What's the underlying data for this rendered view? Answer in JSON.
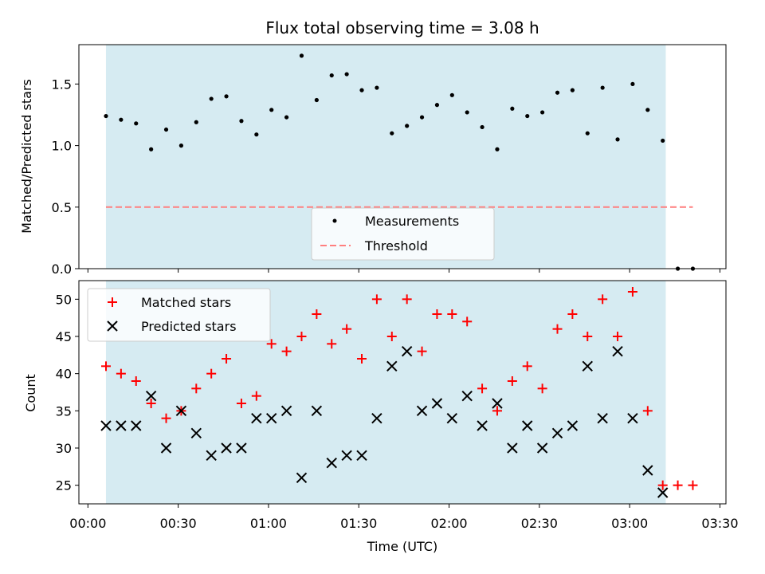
{
  "chart_data": [
    {
      "type": "scatter",
      "title": "Flux total observing time = 3.08 h",
      "xlabel": "",
      "ylabel": "Matched/Predicted stars",
      "ylim": [
        0,
        1.82
      ],
      "yticks": [
        "0.0",
        "0.5",
        "1.0",
        "1.5"
      ],
      "shaded_span": [
        "00:06",
        "03:12"
      ],
      "shade_color": "#add8e6",
      "grid": false,
      "legend_position": "lower-center",
      "x_time": [
        "00:06",
        "00:11",
        "00:16",
        "00:21",
        "00:26",
        "00:31",
        "00:36",
        "00:41",
        "00:46",
        "00:51",
        "00:56",
        "01:01",
        "01:06",
        "01:11",
        "01:16",
        "01:21",
        "01:26",
        "01:31",
        "01:36",
        "01:41",
        "01:46",
        "01:51",
        "01:56",
        "02:01",
        "02:06",
        "02:11",
        "02:16",
        "02:21",
        "02:26",
        "02:31",
        "02:36",
        "02:41",
        "02:46",
        "02:51",
        "02:56",
        "03:01",
        "03:06",
        "03:11",
        "03:16",
        "03:21"
      ],
      "series": [
        {
          "name": "Measurements",
          "marker": "dot",
          "color": "#000000",
          "values": [
            1.24,
            1.21,
            1.18,
            0.97,
            1.13,
            1.0,
            1.19,
            1.38,
            1.4,
            1.2,
            1.09,
            1.29,
            1.23,
            1.73,
            1.37,
            1.57,
            1.58,
            1.45,
            1.47,
            1.1,
            1.16,
            1.23,
            1.33,
            1.41,
            1.27,
            1.15,
            0.97,
            1.3,
            1.24,
            1.27,
            1.43,
            1.45,
            1.1,
            1.47,
            1.05,
            1.5,
            1.29,
            1.04,
            0.0,
            0.0
          ]
        }
      ],
      "threshold": {
        "name": "Threshold",
        "value": 0.5,
        "color": "#ff7f7f",
        "x_range": [
          "00:06",
          "03:21"
        ]
      }
    },
    {
      "type": "scatter",
      "title": "",
      "xlabel": "Time (UTC)",
      "ylabel": "Count",
      "ylim": [
        22.5,
        52.5
      ],
      "yticks": [
        "25",
        "30",
        "35",
        "40",
        "45",
        "50"
      ],
      "xticks": [
        "00:00",
        "00:30",
        "01:00",
        "01:30",
        "02:00",
        "02:30",
        "03:00",
        "03:30"
      ],
      "xlim": [
        "23:57",
        "03:32"
      ],
      "grid": false,
      "legend_position": "top-left",
      "x_time": [
        "00:06",
        "00:11",
        "00:16",
        "00:21",
        "00:26",
        "00:31",
        "00:36",
        "00:41",
        "00:46",
        "00:51",
        "00:56",
        "01:01",
        "01:06",
        "01:11",
        "01:16",
        "01:21",
        "01:26",
        "01:31",
        "01:36",
        "01:41",
        "01:46",
        "01:51",
        "01:56",
        "02:01",
        "02:06",
        "02:11",
        "02:16",
        "02:21",
        "02:26",
        "02:31",
        "02:36",
        "02:41",
        "02:46",
        "02:51",
        "02:56",
        "03:01",
        "03:06",
        "03:11",
        "03:16",
        "03:21"
      ],
      "series": [
        {
          "name": "Matched stars",
          "marker": "plus",
          "color": "#ff0000",
          "values": [
            41,
            40,
            39,
            36,
            34,
            35,
            38,
            40,
            42,
            36,
            37,
            44,
            43,
            45,
            48,
            44,
            46,
            42,
            50,
            45,
            50,
            43,
            48,
            48,
            47,
            38,
            35,
            39,
            41,
            38,
            46,
            48,
            45,
            50,
            45,
            51,
            35,
            25,
            25,
            25
          ]
        },
        {
          "name": "Predicted stars",
          "marker": "x",
          "color": "#000000",
          "values": [
            33,
            33,
            33,
            37,
            30,
            35,
            32,
            29,
            30,
            30,
            34,
            34,
            35,
            26,
            35,
            28,
            29,
            29,
            34,
            41,
            43,
            35,
            36,
            34,
            37,
            33,
            36,
            30,
            33,
            30,
            32,
            33,
            41,
            34,
            43,
            34,
            27,
            24,
            null,
            null
          ]
        }
      ]
    }
  ]
}
